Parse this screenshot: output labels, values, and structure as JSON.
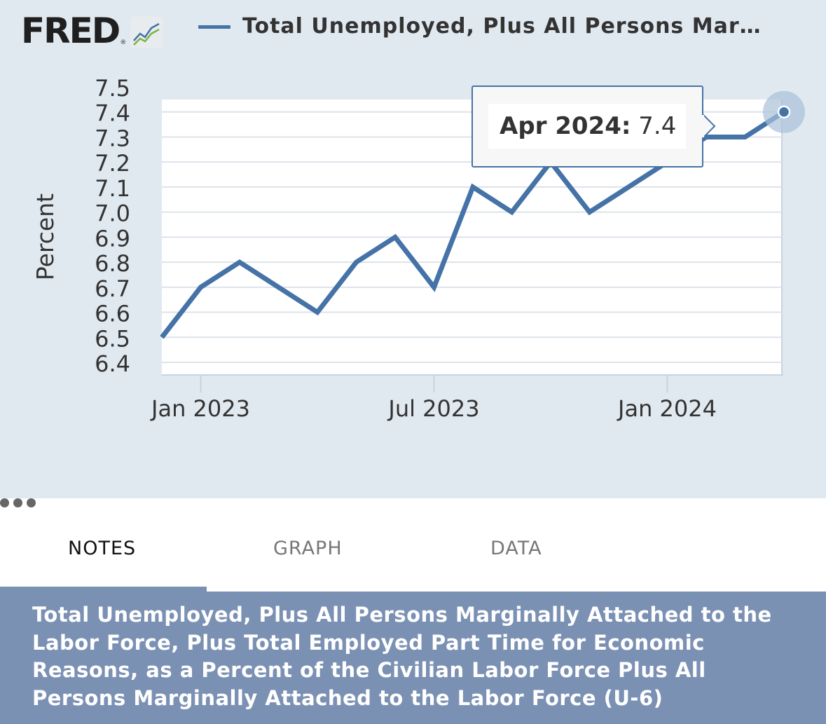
{
  "brand": {
    "logo_text": "FRED",
    "registered_mark": "®",
    "badge_icon": "line-chart-icon"
  },
  "header": {
    "series_title": "Total Unemployed, Plus All Persons Mar…",
    "series_color": "#4572a7"
  },
  "tooltip": {
    "date": "Apr 2024:",
    "value": "7.4"
  },
  "tabs": [
    {
      "label": "NOTES",
      "active": true
    },
    {
      "label": "GRAPH",
      "active": false
    },
    {
      "label": "DATA",
      "active": false
    },
    {
      "label": "more-icon",
      "active": false
    }
  ],
  "notes": {
    "title": "Total Unemployed, Plus All Persons Marginally Attached to the Labor Force, Plus Total Employed Part Time for Economic Reasons, as a Percent of the Civilian Labor Force Plus All Persons Marginally Attached to the Labor Force (U-6)"
  },
  "chart_data": {
    "type": "line",
    "title": "",
    "xlabel": "",
    "ylabel": "Percent",
    "ylim": [
      6.4,
      7.5
    ],
    "yticks": [
      "7.5",
      "7.4",
      "7.3",
      "7.2",
      "7.1",
      "7.0",
      "6.9",
      "6.8",
      "6.7",
      "6.6",
      "6.5",
      "6.4"
    ],
    "xticks": [
      {
        "label": "Jan 2023",
        "date": "2023-01"
      },
      {
        "label": "Jul 2023",
        "date": "2023-07"
      },
      {
        "label": "Jan 2024",
        "date": "2024-01"
      }
    ],
    "xlim": [
      "2022-12",
      "2024-04"
    ],
    "grid": true,
    "series": [
      {
        "color": "#4572a7",
        "x": [
          "2022-12",
          "2023-01",
          "2023-02",
          "2023-03",
          "2023-04",
          "2023-05",
          "2023-06",
          "2023-07",
          "2023-08",
          "2023-09",
          "2023-10",
          "2023-11",
          "2023-12",
          "2024-01",
          "2024-02",
          "2024-03",
          "2024-04"
        ],
        "values": [
          6.5,
          6.7,
          6.8,
          6.7,
          6.6,
          6.8,
          6.9,
          6.7,
          7.1,
          7.0,
          7.2,
          7.0,
          7.1,
          7.2,
          7.3,
          7.3,
          7.4
        ]
      }
    ],
    "highlight": {
      "date": "2024-04",
      "value": 7.4
    }
  }
}
